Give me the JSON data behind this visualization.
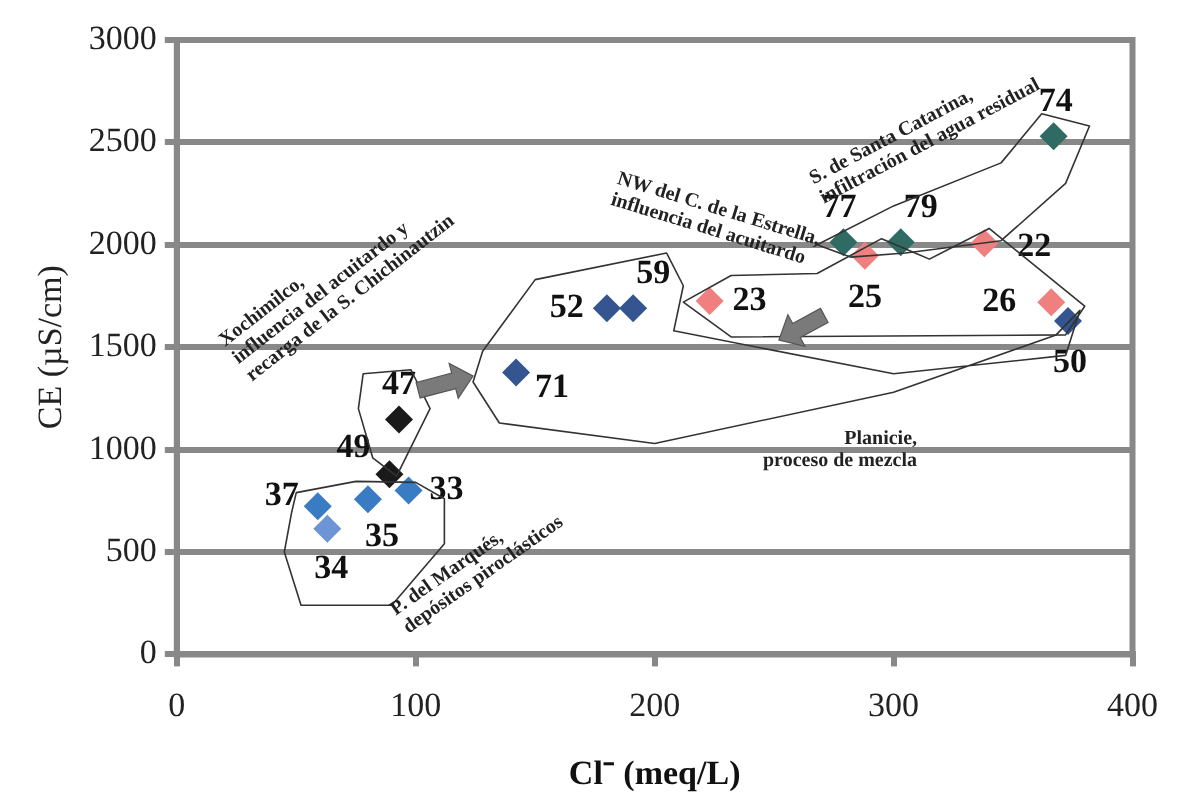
{
  "chart_data": {
    "type": "scatter",
    "xlabel": "Cl⁻ (meq/L)",
    "ylabel": "CE (µS/cm)",
    "xlim": [
      0,
      400
    ],
    "xticks": [
      0,
      100,
      200,
      300,
      400
    ],
    "ylim": [
      0,
      3000
    ],
    "yticks": [
      0,
      500,
      1000,
      1500,
      2000,
      2500,
      3000
    ],
    "grid": "y",
    "legend": false,
    "marker": "diamond",
    "series": [
      {
        "color": "#3a7cc4",
        "x": [
          59,
          80,
          97
        ],
        "values": [
          723,
          757,
          800
        ]
      },
      {
        "color": "#6f94d6",
        "x": [
          63
        ],
        "values": [
          613
        ]
      },
      {
        "color": "#1a1a1a",
        "x": [
          89,
          93
        ],
        "values": [
          880,
          1147
        ]
      },
      {
        "color": "#34558f",
        "x": [
          142,
          180,
          191,
          373
        ],
        "values": [
          1377,
          1690,
          1690,
          1628
        ]
      },
      {
        "color": "#f08080",
        "x": [
          223,
          288,
          338,
          366
        ],
        "values": [
          1725,
          1946,
          2007,
          1720
        ]
      },
      {
        "color": "#2f6b62",
        "x": [
          279,
          303,
          367
        ],
        "values": [
          2013,
          2013,
          2530
        ]
      }
    ],
    "annotations": [
      {
        "text": "37",
        "x": 59,
        "y": 723
      },
      {
        "text": "34",
        "x": 63,
        "y": 613
      },
      {
        "text": "35",
        "x": 80,
        "y": 757
      },
      {
        "text": "49",
        "x": 89,
        "y": 880
      },
      {
        "text": "33",
        "x": 97,
        "y": 800
      },
      {
        "text": "47",
        "x": 93,
        "y": 1147
      },
      {
        "text": "71",
        "x": 142,
        "y": 1377
      },
      {
        "text": "52",
        "x": 180,
        "y": 1690
      },
      {
        "text": "59",
        "x": 191,
        "y": 1690
      },
      {
        "text": "23",
        "x": 223,
        "y": 1725
      },
      {
        "text": "25",
        "x": 288,
        "y": 1946
      },
      {
        "text": "77",
        "x": 279,
        "y": 2013
      },
      {
        "text": "79",
        "x": 303,
        "y": 2013
      },
      {
        "text": "22",
        "x": 338,
        "y": 2007
      },
      {
        "text": "26",
        "x": 366,
        "y": 1720
      },
      {
        "text": "50",
        "x": 373,
        "y": 1628
      },
      {
        "text": "74",
        "x": 367,
        "y": 2530
      },
      "Xochimilco,\ninfluencia del acuitardo y\nrecarga de la S. Chichinautzin",
      "P. del Marqués,\ndepósitos piroclásticos",
      "Planicie,\nproceso de mezcla",
      "NW del C. de la Estrella,\ninfluencia del acuitardo",
      "S. de Santa Catarina,\ninfiltración del agua residual"
    ]
  }
}
